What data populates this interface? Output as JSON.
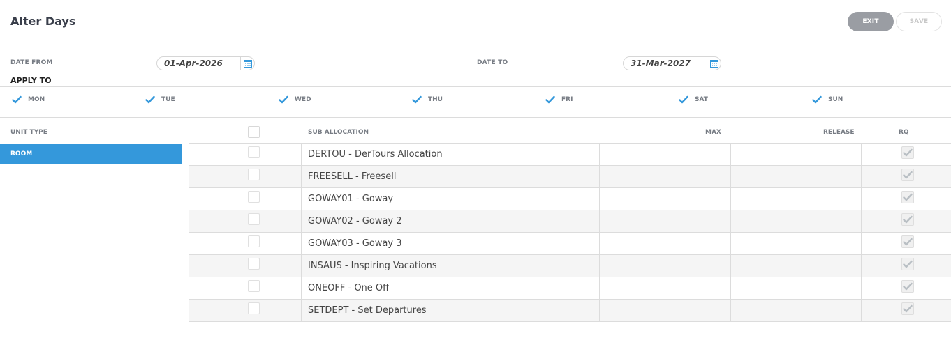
{
  "header": {
    "title": "Alter Days",
    "exit_label": "EXIT",
    "save_label": "SAVE"
  },
  "dates": {
    "from_label": "DATE FROM",
    "from_value": "01-Apr-2026",
    "to_label": "DATE TO",
    "to_value": "31-Mar-2027"
  },
  "apply_to": {
    "label": "APPLY TO",
    "days": [
      {
        "label": "MON",
        "checked": true
      },
      {
        "label": "TUE",
        "checked": true
      },
      {
        "label": "WED",
        "checked": true
      },
      {
        "label": "THU",
        "checked": true
      },
      {
        "label": "FRI",
        "checked": true
      },
      {
        "label": "SAT",
        "checked": true
      },
      {
        "label": "SUN",
        "checked": true
      }
    ]
  },
  "table": {
    "unit_type_header": "UNIT TYPE",
    "sub_allocation_header": "SUB ALLOCATION",
    "max_header": "MAX",
    "release_header": "RELEASE",
    "rq_header": "RQ",
    "selected_unit": "ROOM",
    "rows": [
      {
        "name": "DERTOU - DerTours Allocation",
        "max": "",
        "release": "",
        "rq": true
      },
      {
        "name": "FREESELL - Freesell",
        "max": "",
        "release": "",
        "rq": true
      },
      {
        "name": "GOWAY01 - Goway",
        "max": "",
        "release": "",
        "rq": true
      },
      {
        "name": "GOWAY02 - Goway 2",
        "max": "",
        "release": "",
        "rq": true
      },
      {
        "name": "GOWAY03 - Goway 3",
        "max": "",
        "release": "",
        "rq": true
      },
      {
        "name": "INSAUS - Inspiring Vacations",
        "max": "",
        "release": "",
        "rq": true
      },
      {
        "name": "ONEOFF - One Off",
        "max": "",
        "release": "",
        "rq": true
      },
      {
        "name": "SETDEPT - Set Departures",
        "max": "",
        "release": "",
        "rq": true
      }
    ]
  },
  "colors": {
    "accent": "#3498db",
    "exit_button": "#9a9da3"
  }
}
